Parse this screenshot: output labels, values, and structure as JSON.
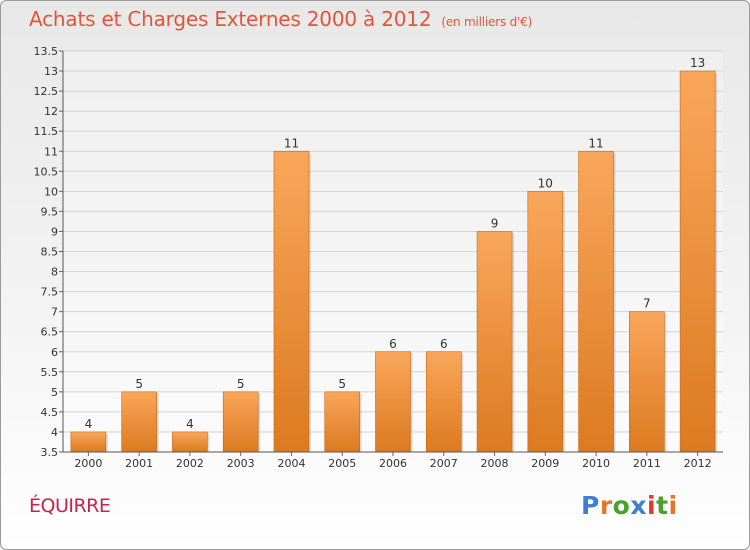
{
  "header": {
    "title": "Achats et Charges Externes 2000 à 2012",
    "subtitle": "(en milliers d'€)"
  },
  "footer": {
    "town": "ÉQUIRRE",
    "logo": "Proxiti"
  },
  "colors": {
    "title": "#e0563a",
    "town": "#c8244a",
    "bar_light": "#f9a65a",
    "bar_dark": "#dc7a20",
    "logo_letters": [
      "#3f7fcf",
      "#e8742a",
      "#4aa02c",
      "#3f7fcf",
      "#e23a2a",
      "#4aa02c",
      "#e8742a"
    ]
  },
  "chart_data": {
    "type": "bar",
    "title": "Achats et Charges Externes 2000 à 2012",
    "subtitle": "(en milliers d'€)",
    "xlabel": "",
    "ylabel": "",
    "categories": [
      "2000",
      "2001",
      "2002",
      "2003",
      "2004",
      "2005",
      "2006",
      "2007",
      "2008",
      "2009",
      "2010",
      "2011",
      "2012"
    ],
    "values": [
      4,
      5,
      4,
      5,
      11,
      5,
      6,
      6,
      9,
      10,
      11,
      7,
      13
    ],
    "data_labels": [
      "4",
      "5",
      "4",
      "5",
      "11",
      "5",
      "6",
      "6",
      "9",
      "10",
      "11",
      "7",
      "13"
    ],
    "ylim": [
      3.5,
      13.5
    ],
    "yticks": [
      "3.5",
      "4",
      "4.5",
      "5",
      "5.5",
      "6",
      "6.5",
      "7",
      "7.5",
      "8",
      "8.5",
      "9",
      "9.5",
      "10",
      "10.5",
      "11",
      "11.5",
      "12",
      "12.5",
      "13",
      "13.5"
    ],
    "grid": true,
    "legend": "none"
  }
}
